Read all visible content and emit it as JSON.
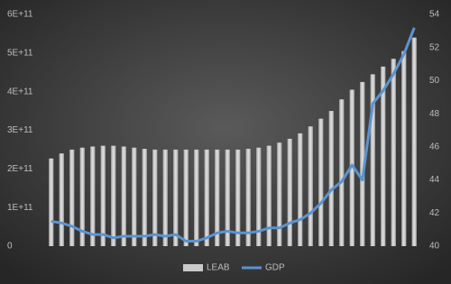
{
  "chart_data": {
    "type": "bar-line",
    "categories": [
      null,
      null,
      null,
      null,
      null,
      null,
      null,
      null,
      null,
      null,
      null,
      null,
      null,
      null,
      null,
      null,
      null,
      null,
      null,
      null,
      null,
      null,
      null,
      null,
      null,
      null,
      null,
      null,
      null,
      null,
      null,
      null,
      null,
      null,
      null,
      null
    ],
    "series": [
      {
        "name": "LEAB",
        "type": "bar",
        "axis": "y",
        "color": "#c9c9c9",
        "values": [
          227000000000,
          240000000000,
          250000000000,
          255000000000,
          258000000000,
          260000000000,
          260000000000,
          258000000000,
          255000000000,
          252000000000,
          250000000000,
          250000000000,
          250000000000,
          250000000000,
          250000000000,
          250000000000,
          250000000000,
          250000000000,
          250000000000,
          252000000000,
          255000000000,
          260000000000,
          268000000000,
          278000000000,
          292000000000,
          310000000000,
          330000000000,
          350000000000,
          380000000000,
          405000000000,
          425000000000,
          445000000000,
          465000000000,
          485000000000,
          505000000000,
          540000000000
        ]
      },
      {
        "name": "GDP",
        "type": "line",
        "axis": "y2",
        "color": "#5b93cf",
        "values": [
          41.5,
          41.4,
          41.2,
          40.9,
          40.7,
          40.7,
          40.5,
          40.6,
          40.6,
          40.6,
          40.7,
          40.6,
          40.7,
          40.3,
          40.3,
          40.5,
          40.8,
          40.9,
          40.8,
          40.8,
          40.9,
          41.1,
          41.1,
          41.4,
          41.6,
          42.0,
          42.6,
          43.4,
          43.9,
          44.9,
          44.0,
          48.6,
          49.4,
          50.4,
          51.6,
          53.2
        ]
      }
    ],
    "ylim": [
      0,
      600000000000
    ],
    "yticks": [
      0,
      {
        "value": 100000000000,
        "label": "1E+11"
      },
      {
        "value": 200000000000,
        "label": "2E+11"
      },
      {
        "value": 300000000000,
        "label": "3E+11"
      },
      {
        "value": 400000000000,
        "label": "4E+11"
      },
      {
        "value": 500000000000,
        "label": "5E+11"
      },
      {
        "value": 600000000000,
        "label": "6E+11"
      }
    ],
    "y2lim": [
      40,
      54
    ],
    "y2ticks": [
      40,
      42,
      44,
      46,
      48,
      50,
      52,
      54
    ],
    "legend": "bottom"
  }
}
